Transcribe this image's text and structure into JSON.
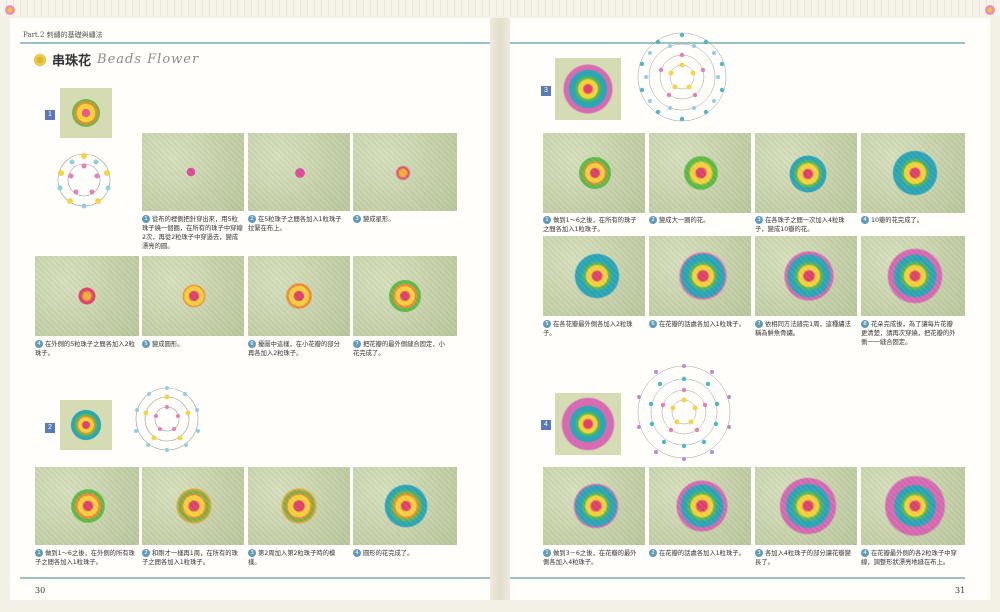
{
  "header": {
    "text": "Part.2  刺繡的基礎與繡法"
  },
  "title": {
    "zh": "串珠花",
    "en": "Beads Flower"
  },
  "sections": [
    {
      "num": "1"
    },
    {
      "num": "2"
    },
    {
      "num": "3"
    },
    {
      "num": "4"
    }
  ],
  "captions": {
    "s1": [
      {
        "n": "1",
        "text": "從布的裡側把針穿出來，用5粒珠子繞一個圈，在所有的珠子中穿線2次，再從2粒珠子中穿過去，變成漂亮的圓。"
      },
      {
        "n": "2",
        "text": "在5粒珠子之間各加入1粒珠子拉緊在布上。"
      },
      {
        "n": "3",
        "text": "變成星形。"
      },
      {
        "n": "4",
        "text": "在外側的5粒珠子之間各加入2粒珠子。"
      },
      {
        "n": "5",
        "text": "變成圓形。"
      },
      {
        "n": "6",
        "text": "擾圖中這樣，在小花瓣的部分再各加入2粒珠子。"
      },
      {
        "n": "7",
        "text": "把花瓣的最外側縫合固定，小花完成了。"
      }
    ],
    "s2": [
      {
        "n": "1",
        "text": "做到1～6之後，在外側的所有珠子之間各加入1粒珠子。"
      },
      {
        "n": "2",
        "text": "和剛才一樣再1周，在所有的珠子之間各加入1粒珠子。"
      },
      {
        "n": "3",
        "text": "第2周加入第2粒珠子時的模樣。"
      },
      {
        "n": "4",
        "text": "圓形的花完成了。"
      }
    ],
    "s3": [
      {
        "n": "1",
        "text": "做到1～6之後，在所有的珠子之間各加入1粒珠子。"
      },
      {
        "n": "2",
        "text": "變成大一圈的花。"
      },
      {
        "n": "3",
        "text": "在各珠子之間一次加入4粒珠子，變成10瓣的花。"
      },
      {
        "n": "4",
        "text": "10瓣的花完成了。"
      },
      {
        "n": "5",
        "text": "在各花瓣最外側各加入2粒珠子。"
      },
      {
        "n": "6",
        "text": "在花瓣的話處各加入1粒珠子。"
      },
      {
        "n": "7",
        "text": "依相同方法縫完1周，這種繡法稱為鮮魚骨繡。"
      },
      {
        "n": "8",
        "text": "花朵完成後，為了讓每片花瓣更清楚，請再次穿繞，把花瓣的外側一一縫合固定。"
      }
    ],
    "s4": [
      {
        "n": "1",
        "text": "做到3－6之後，在花瓣的最外側各加入4粒珠子。"
      },
      {
        "n": "2",
        "text": "在花瓣的話處各加入1粒珠子。"
      },
      {
        "n": "3",
        "text": "各加入4粒珠子的部分讓花瓣變長了。"
      },
      {
        "n": "4",
        "text": "在花瓣最外側的各2粒珠子中穿線，調整形狀漂亮地縫在布上。"
      }
    ]
  },
  "page_numbers": {
    "left": "30",
    "right": "31"
  }
}
